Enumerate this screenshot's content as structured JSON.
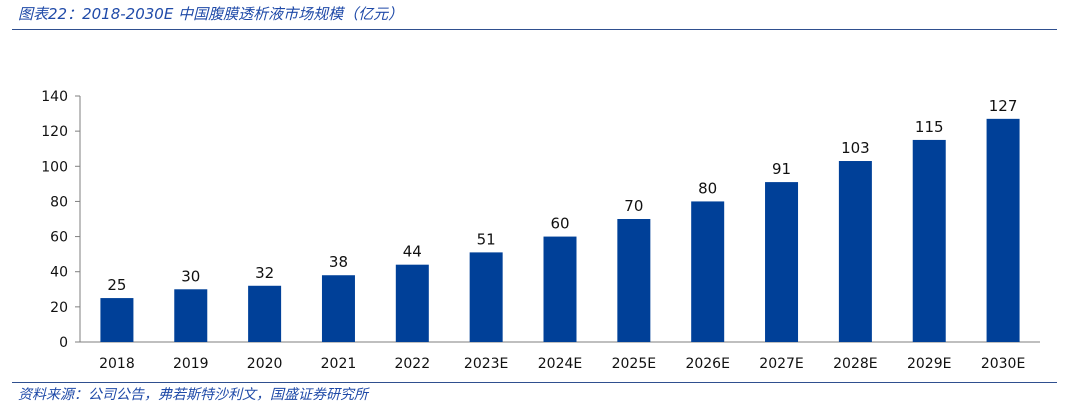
{
  "figure": {
    "title": "图表22：2018-2030E 中国腹膜透析液市场规模（亿元）",
    "source": "资料来源：公司公告，弗若斯特沙利文，国盛证券研究所"
  },
  "colors": {
    "bar": "#004098",
    "axis": "#7f7f7f",
    "text": "#111111",
    "accent": "#1f4aa8",
    "rule": "#2f4f8f"
  },
  "chart_data": {
    "type": "bar",
    "title": "",
    "xlabel": "",
    "ylabel": "",
    "categories": [
      "2018",
      "2019",
      "2020",
      "2021",
      "2022",
      "2023E",
      "2024E",
      "2025E",
      "2026E",
      "2027E",
      "2028E",
      "2029E",
      "2030E"
    ],
    "values": [
      25,
      30,
      32,
      38,
      44,
      51,
      60,
      70,
      80,
      91,
      103,
      115,
      127
    ],
    "ylim": [
      0,
      140
    ],
    "yticks": [
      0,
      20,
      40,
      60,
      80,
      100,
      120,
      140
    ],
    "grid": false,
    "legend": "none",
    "data_labels": true
  }
}
